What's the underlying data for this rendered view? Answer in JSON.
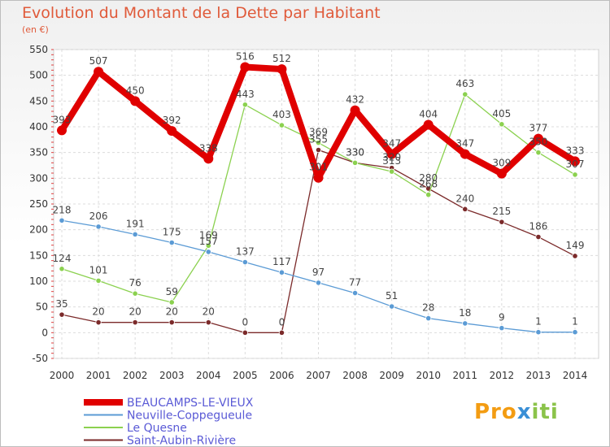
{
  "chart_data": {
    "type": "line",
    "title": "Evolution du Montant de la Dette par Habitant",
    "subtitle": "(en €)",
    "xlabel": "",
    "ylabel": "",
    "categories": [
      "2000",
      "2001",
      "2002",
      "2003",
      "2004",
      "2005",
      "2006",
      "2007",
      "2008",
      "2009",
      "2010",
      "2011",
      "2012",
      "2013",
      "2014"
    ],
    "ylim": [
      -50,
      550
    ],
    "yticks": [
      -50,
      0,
      50,
      100,
      150,
      200,
      250,
      300,
      350,
      400,
      450,
      500,
      550
    ],
    "grid": true,
    "legend_position": "bottom-left",
    "series": [
      {
        "name": "BEAUCAMPS-LE-VIEUX",
        "color": "#e00000",
        "values": [
          393,
          507,
          450,
          392,
          338,
          516,
          512,
          301,
          432,
          347,
          404,
          347,
          309,
          377,
          333
        ]
      },
      {
        "name": "Neuville-Coppegueule",
        "color": "#5b9bd5",
        "values": [
          218,
          206,
          191,
          175,
          157,
          137,
          117,
          97,
          77,
          51,
          28,
          18,
          9,
          1,
          1
        ]
      },
      {
        "name": "Le Quesne",
        "color": "#8bd14f",
        "values": [
          124,
          101,
          76,
          59,
          169,
          443,
          403,
          369,
          330,
          313,
          268,
          463,
          405,
          350,
          307
        ]
      },
      {
        "name": "Saint-Aubin-Rivière",
        "color": "#7b2a2a",
        "values": [
          35,
          20,
          20,
          20,
          20,
          0,
          0,
          355,
          330,
          320,
          280,
          240,
          215,
          186,
          149
        ]
      }
    ]
  },
  "logo": {
    "part1": "Pro",
    "part2": "x",
    "part3": "iti"
  }
}
